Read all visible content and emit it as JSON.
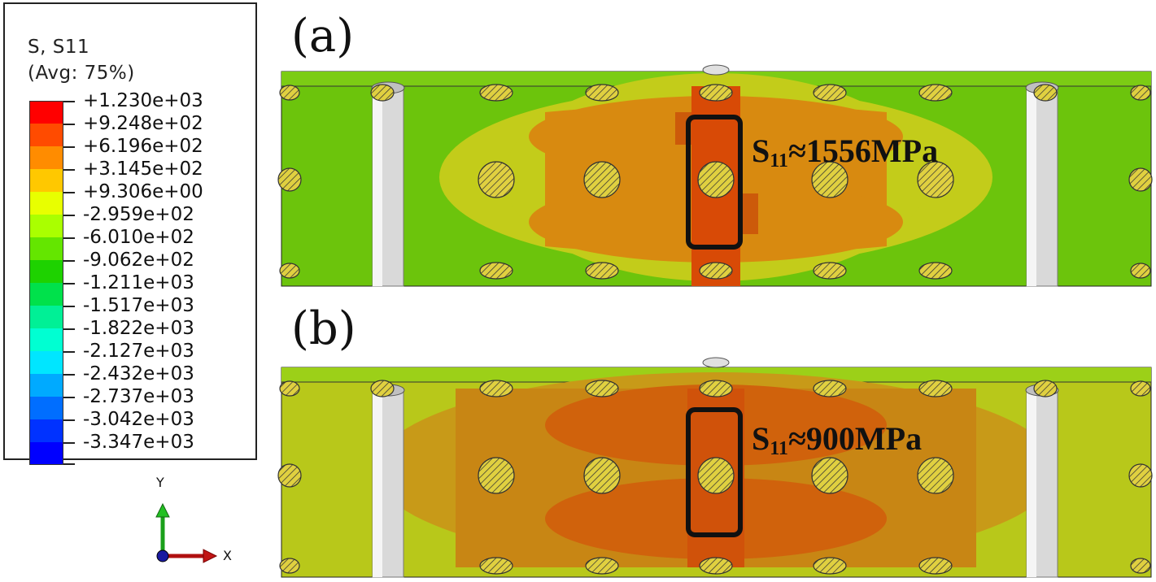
{
  "legend": {
    "title_line1": "S, S11",
    "title_line2": "(Avg: 75%)",
    "entries": [
      {
        "label": "+1.230e+03",
        "color": "#ff0000"
      },
      {
        "label": "+9.248e+02",
        "color": "#ff4b00"
      },
      {
        "label": "+6.196e+02",
        "color": "#ff8c00"
      },
      {
        "label": "+3.145e+02",
        "color": "#ffc800"
      },
      {
        "label": "+9.306e+00",
        "color": "#e8ff00"
      },
      {
        "label": "-2.959e+02",
        "color": "#aaff00"
      },
      {
        "label": "-6.010e+02",
        "color": "#64e600"
      },
      {
        "label": "-9.062e+02",
        "color": "#1ed200"
      },
      {
        "label": "-1.211e+03",
        "color": "#00e14b"
      },
      {
        "label": "-1.517e+03",
        "color": "#00f096"
      },
      {
        "label": "-1.822e+03",
        "color": "#00ffd2"
      },
      {
        "label": "-2.127e+03",
        "color": "#00e6ff"
      },
      {
        "label": "-2.432e+03",
        "color": "#00aaff"
      },
      {
        "label": "-2.737e+03",
        "color": "#006eff"
      },
      {
        "label": "-3.042e+03",
        "color": "#0032ff"
      },
      {
        "label": "-3.347e+03",
        "color": "#0000ff"
      }
    ]
  },
  "triad": {
    "y_label": "Y",
    "x_label": "X"
  },
  "panel_a": {
    "label": "(a)",
    "annotation_main": "S",
    "annotation_sub": "11",
    "annotation_value": "≈1556MPa"
  },
  "panel_b": {
    "label": "(b)",
    "annotation_main": "S",
    "annotation_sub": "11",
    "annotation_value": "≈900MPa"
  },
  "colors": {
    "plate_green": "#6cc40c",
    "plate_yellow": "#c3cc1a",
    "plate_orange": "#d88a10",
    "plate_red": "#d84a06",
    "highlight_box": "#111111",
    "pin_gray": "#d9d9d9"
  }
}
